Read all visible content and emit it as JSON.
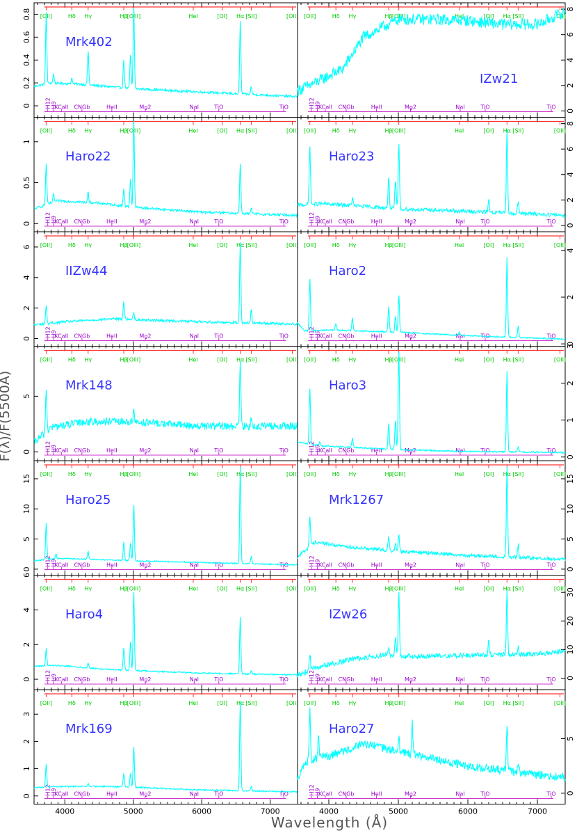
{
  "figure": {
    "ylabel": "F(λ)/F(5500Å)",
    "xlabel": "Wavelength (Å)"
  },
  "chart_data": {
    "type": "line",
    "x_range": [
      3550,
      7400
    ],
    "x_ticks": [
      "4000",
      "5000",
      "6000",
      "7000"
    ],
    "x_tick_values": [
      4000,
      5000,
      6000,
      7000
    ],
    "xlabel": "Wavelength (Å)",
    "ylabel": "F(λ)/F(5500Å)",
    "line_color": "#00ffff",
    "emission_color": "#00cc00",
    "absorption_color": "#9900cc",
    "bar_color": "#ff3333",
    "emission_lines": [
      {
        "label": "[OII]",
        "wl": 3727
      },
      {
        "label": "Hδ",
        "wl": 4102
      },
      {
        "label": "Hγ",
        "wl": 4340
      },
      {
        "label": "Hβ",
        "wl": 4861
      },
      {
        "label": "[OIII]",
        "wl": 5007
      },
      {
        "label": "HeI",
        "wl": 5876
      },
      {
        "label": "[OI]",
        "wl": 6300
      },
      {
        "label": "Hα",
        "wl": 6563
      },
      {
        "label": "[SII]",
        "wl": 6724
      },
      {
        "label": "[OII]",
        "wl": 7325
      }
    ],
    "absorption_features": [
      {
        "label": "H12",
        "wl": 3750,
        "vertical": true
      },
      {
        "label": "H9",
        "wl": 3835,
        "vertical": true
      },
      {
        "label": "KCaII",
        "wl": 3950
      },
      {
        "label": "CNGb",
        "wl": 4250
      },
      {
        "label": "HeII",
        "wl": 4686
      },
      {
        "label": "Mg2",
        "wl": 5175
      },
      {
        "label": "NaI",
        "wl": 5890
      },
      {
        "label": "TiO",
        "wl": 6250
      },
      {
        "label": "TiO",
        "wl": 7200
      }
    ],
    "panels": [
      {
        "name": "Mrk402",
        "col": 0,
        "row": 0,
        "ylim": [
          -0.1,
          0.9
        ],
        "yticks": [
          0,
          0.2,
          0.4,
          0.6,
          0.8
        ],
        "axis": "left",
        "continuum": [
          [
            3550,
            0.17
          ],
          [
            3800,
            0.2
          ],
          [
            4200,
            0.19
          ],
          [
            5000,
            0.15
          ],
          [
            6000,
            0.12
          ],
          [
            7400,
            0.08
          ]
        ],
        "noise": 0.01,
        "lines": [
          [
            3727,
            0.62
          ],
          [
            3835,
            0.08
          ],
          [
            4102,
            0.05
          ],
          [
            4340,
            0.3
          ],
          [
            4861,
            0.25
          ],
          [
            4959,
            0.3
          ],
          [
            5007,
            0.72
          ],
          [
            6563,
            0.63
          ],
          [
            6724,
            0.07
          ]
        ]
      },
      {
        "name": "IZw21",
        "col": 1,
        "row": 0,
        "ylim": [
          -0.5,
          8.5
        ],
        "yticks": [
          0,
          2,
          4,
          6,
          8
        ],
        "axis": "right",
        "continuum": [
          [
            3550,
            1.6
          ],
          [
            3800,
            2.2
          ],
          [
            4200,
            3.3
          ],
          [
            4500,
            5.8
          ],
          [
            5000,
            7.2
          ],
          [
            5500,
            7.2
          ],
          [
            6000,
            7.1
          ],
          [
            6500,
            6.8
          ],
          [
            7000,
            6.8
          ],
          [
            7400,
            7.8
          ]
        ],
        "noise": 0.45,
        "lines": []
      },
      {
        "name": "Haro22",
        "col": 0,
        "row": 1,
        "ylim": [
          -0.1,
          1.3
        ],
        "yticks": [
          0,
          0.5,
          1
        ],
        "axis": "left",
        "continuum": [
          [
            3550,
            0.18
          ],
          [
            3900,
            0.28
          ],
          [
            4500,
            0.25
          ],
          [
            5000,
            0.2
          ],
          [
            6000,
            0.14
          ],
          [
            7400,
            0.1
          ]
        ],
        "noise": 0.015,
        "lines": [
          [
            3727,
            0.5
          ],
          [
            3835,
            0.1
          ],
          [
            4340,
            0.12
          ],
          [
            4861,
            0.22
          ],
          [
            4959,
            0.35
          ],
          [
            5007,
            1.08
          ],
          [
            6563,
            0.62
          ],
          [
            6724,
            0.06
          ]
        ]
      },
      {
        "name": "Haro23",
        "col": 1,
        "row": 1,
        "ylim": [
          -0.5,
          8.5
        ],
        "yticks": [
          0,
          2,
          4,
          6,
          8
        ],
        "axis": "right",
        "continuum": [
          [
            3550,
            1.6
          ],
          [
            3900,
            1.7
          ],
          [
            4500,
            1.5
          ],
          [
            5000,
            1.3
          ],
          [
            6000,
            1.1
          ],
          [
            7400,
            0.8
          ]
        ],
        "noise": 0.15,
        "lines": [
          [
            3727,
            4.7
          ],
          [
            4340,
            0.6
          ],
          [
            4861,
            2.5
          ],
          [
            4959,
            2.2
          ],
          [
            5007,
            5.2
          ],
          [
            6300,
            1.0
          ],
          [
            6563,
            6.5
          ],
          [
            6724,
            1.0
          ]
        ]
      },
      {
        "name": "IIZw44",
        "col": 0,
        "row": 2,
        "ylim": [
          -0.5,
          7
        ],
        "yticks": [
          0,
          2,
          4,
          6
        ],
        "axis": "left",
        "continuum": [
          [
            3550,
            0.9
          ],
          [
            4000,
            1.1
          ],
          [
            4700,
            1.3
          ],
          [
            5000,
            1.25
          ],
          [
            6000,
            1.1
          ],
          [
            7400,
            0.95
          ]
        ],
        "noise": 0.08,
        "lines": [
          [
            3727,
            1.2
          ],
          [
            4861,
            1.2
          ],
          [
            5007,
            0.5
          ],
          [
            6563,
            5.3
          ],
          [
            6724,
            0.9
          ]
        ]
      },
      {
        "name": "Haro2",
        "col": 1,
        "row": 2,
        "ylim": [
          -0.1,
          4.8
        ],
        "yticks": [
          0,
          2,
          4
        ],
        "axis": "right",
        "continuum": [
          [
            3550,
            0.9
          ],
          [
            3650,
            0.55
          ],
          [
            4000,
            0.6
          ],
          [
            5000,
            0.5
          ],
          [
            6000,
            0.35
          ],
          [
            7400,
            0.2
          ]
        ],
        "noise": 0.03,
        "lines": [
          [
            3727,
            2.2
          ],
          [
            4102,
            0.3
          ],
          [
            4340,
            0.55
          ],
          [
            4861,
            1.1
          ],
          [
            4959,
            0.7
          ],
          [
            5007,
            1.6
          ],
          [
            5876,
            0.15
          ],
          [
            6563,
            3.4
          ],
          [
            6724,
            0.5
          ]
        ]
      },
      {
        "name": "Mrk148",
        "col": 0,
        "row": 3,
        "ylim": [
          -0.8,
          9.5
        ],
        "yticks": [
          0,
          5
        ],
        "axis": "left",
        "continuum": [
          [
            3550,
            0.8
          ],
          [
            3800,
            2.2
          ],
          [
            4300,
            2.7
          ],
          [
            5000,
            2.7
          ],
          [
            6000,
            2.3
          ],
          [
            7400,
            2.3
          ]
        ],
        "noise": 0.35,
        "lines": [
          [
            3727,
            4.0
          ],
          [
            5007,
            1.2
          ],
          [
            6563,
            5.8
          ],
          [
            6724,
            0.8
          ]
        ]
      },
      {
        "name": "Haro3",
        "col": 1,
        "row": 3,
        "ylim": [
          -0.1,
          3.0
        ],
        "yticks": [
          0,
          1,
          2,
          3
        ],
        "axis": "right",
        "continuum": [
          [
            3550,
            0.4
          ],
          [
            3900,
            0.3
          ],
          [
            5000,
            0.2
          ],
          [
            6000,
            0.15
          ],
          [
            7400,
            0.12
          ]
        ],
        "noise": 0.02,
        "lines": [
          [
            3727,
            1.5
          ],
          [
            3870,
            0.1
          ],
          [
            4340,
            0.25
          ],
          [
            4861,
            0.7
          ],
          [
            4959,
            0.8
          ],
          [
            5007,
            2.7
          ],
          [
            6563,
            2.2
          ],
          [
            6724,
            0.15
          ]
        ]
      },
      {
        "name": "Haro25",
        "col": 0,
        "row": 4,
        "ylim": [
          -1,
          18
        ],
        "yticks": [
          0,
          5,
          10,
          15
        ],
        "axis": "left",
        "continuum": [
          [
            3550,
            1.4
          ],
          [
            3900,
            1.8
          ],
          [
            4500,
            1.6
          ],
          [
            5000,
            1.4
          ],
          [
            6000,
            1.1
          ],
          [
            7400,
            0.7
          ]
        ],
        "noise": 0.1,
        "lines": [
          [
            3727,
            6.0
          ],
          [
            3870,
            0.7
          ],
          [
            4340,
            1.3
          ],
          [
            4861,
            3.1
          ],
          [
            4959,
            3.0
          ],
          [
            5007,
            9.4
          ],
          [
            6563,
            16.0
          ],
          [
            6724,
            1.2
          ]
        ]
      },
      {
        "name": "Mrk1267",
        "col": 1,
        "row": 4,
        "ylim": [
          -1,
          18
        ],
        "yticks": [
          0,
          5,
          10,
          15
        ],
        "axis": "right",
        "continuum": [
          [
            3550,
            2.0
          ],
          [
            3800,
            4.5
          ],
          [
            4200,
            3.8
          ],
          [
            5000,
            3.0
          ],
          [
            6000,
            2.3
          ],
          [
            7400,
            1.6
          ]
        ],
        "noise": 0.3,
        "lines": [
          [
            3727,
            5.0
          ],
          [
            4861,
            2.4
          ],
          [
            4959,
            1.2
          ],
          [
            5007,
            2.8
          ],
          [
            6563,
            15.0
          ],
          [
            6724,
            2.1
          ]
        ]
      },
      {
        "name": "Haro4",
        "col": 0,
        "row": 5,
        "ylim": [
          -0.6,
          6
        ],
        "yticks": [
          0,
          2,
          4,
          6
        ],
        "axis": "left",
        "continuum": [
          [
            3550,
            0.75
          ],
          [
            3900,
            0.8
          ],
          [
            4500,
            0.6
          ],
          [
            5000,
            0.5
          ],
          [
            6000,
            0.35
          ],
          [
            7400,
            0.25
          ]
        ],
        "noise": 0.04,
        "lines": [
          [
            3727,
            1.0
          ],
          [
            4340,
            0.3
          ],
          [
            4861,
            1.3
          ],
          [
            4959,
            1.7
          ],
          [
            5007,
            4.6
          ],
          [
            6563,
            3.3
          ],
          [
            6724,
            0.2
          ]
        ]
      },
      {
        "name": "IZw26",
        "col": 1,
        "row": 5,
        "ylim": [
          -4,
          36
        ],
        "yticks": [
          0,
          10,
          20,
          30
        ],
        "axis": "right",
        "continuum": [
          [
            3550,
            1.0
          ],
          [
            3800,
            3.5
          ],
          [
            4300,
            6.5
          ],
          [
            4800,
            8.0
          ],
          [
            5000,
            7.5
          ],
          [
            6000,
            8.0
          ],
          [
            7000,
            8.5
          ],
          [
            7400,
            9.5
          ]
        ],
        "noise": 0.9,
        "lines": [
          [
            3727,
            6.0
          ],
          [
            4861,
            3.0
          ],
          [
            4959,
            7.0
          ],
          [
            5007,
            23.0
          ],
          [
            6300,
            5.0
          ],
          [
            6563,
            22.0
          ],
          [
            6724,
            3.0
          ]
        ]
      },
      {
        "name": "Mrk169",
        "col": 0,
        "row": 6,
        "ylim": [
          -0.3,
          3.9
        ],
        "yticks": [
          0,
          1,
          2,
          3
        ],
        "axis": "left",
        "continuum": [
          [
            3550,
            0.3
          ],
          [
            3900,
            0.35
          ],
          [
            4600,
            0.35
          ],
          [
            5000,
            0.32
          ],
          [
            6000,
            0.22
          ],
          [
            7400,
            0.15
          ]
        ],
        "noise": 0.025,
        "lines": [
          [
            3727,
            0.85
          ],
          [
            4340,
            0.1
          ],
          [
            4861,
            0.5
          ],
          [
            4959,
            0.5
          ],
          [
            5007,
            1.5
          ],
          [
            6563,
            3.3
          ],
          [
            6724,
            0.15
          ]
        ]
      },
      {
        "name": "Haro27",
        "col": 1,
        "row": 6,
        "ylim": [
          -1,
          9.5
        ],
        "yticks": [
          0,
          5
        ],
        "axis": "right",
        "continuum": [
          [
            3550,
            1.5
          ],
          [
            3700,
            3.0
          ],
          [
            4000,
            3.4
          ],
          [
            4500,
            4.5
          ],
          [
            5000,
            3.8
          ],
          [
            6000,
            2.5
          ],
          [
            7400,
            1.4
          ]
        ],
        "noise": 0.4,
        "lines": [
          [
            3727,
            4.5
          ],
          [
            3850,
            2.0
          ],
          [
            5007,
            1.5
          ],
          [
            5200,
            3.0
          ],
          [
            6563,
            4.5
          ],
          [
            6724,
            1.0
          ]
        ]
      }
    ]
  }
}
